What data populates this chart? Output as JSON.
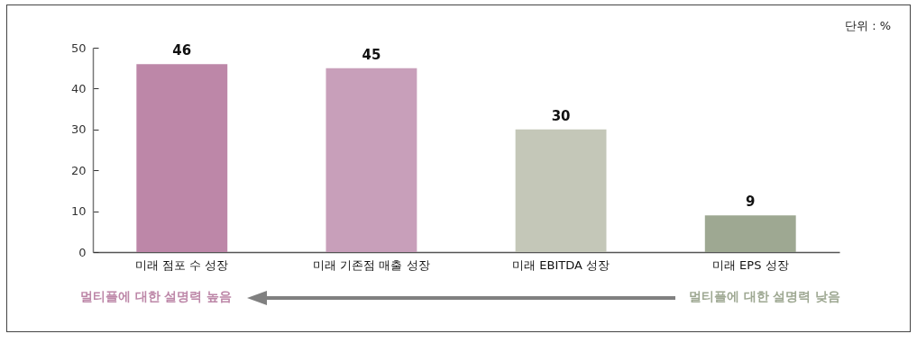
{
  "chart_data": {
    "type": "bar",
    "categories": [
      "미래 점포 수 성장",
      "미래 기존점 매출 성장",
      "미래 EBITDA 성장",
      "미래 EPS 성장"
    ],
    "values": [
      46,
      45,
      30,
      9
    ],
    "colors": [
      "#bd87a8",
      "#c89fba",
      "#c4c7b8",
      "#9ea892"
    ],
    "ylim": [
      0,
      50
    ],
    "yticks": [
      0,
      10,
      20,
      30,
      40,
      50
    ],
    "data_labels": true,
    "annotations": [
      "단위 : %",
      "멀티플에 대한 설명력 높음",
      "멀티플에 대한 설명력 낮음"
    ]
  }
}
